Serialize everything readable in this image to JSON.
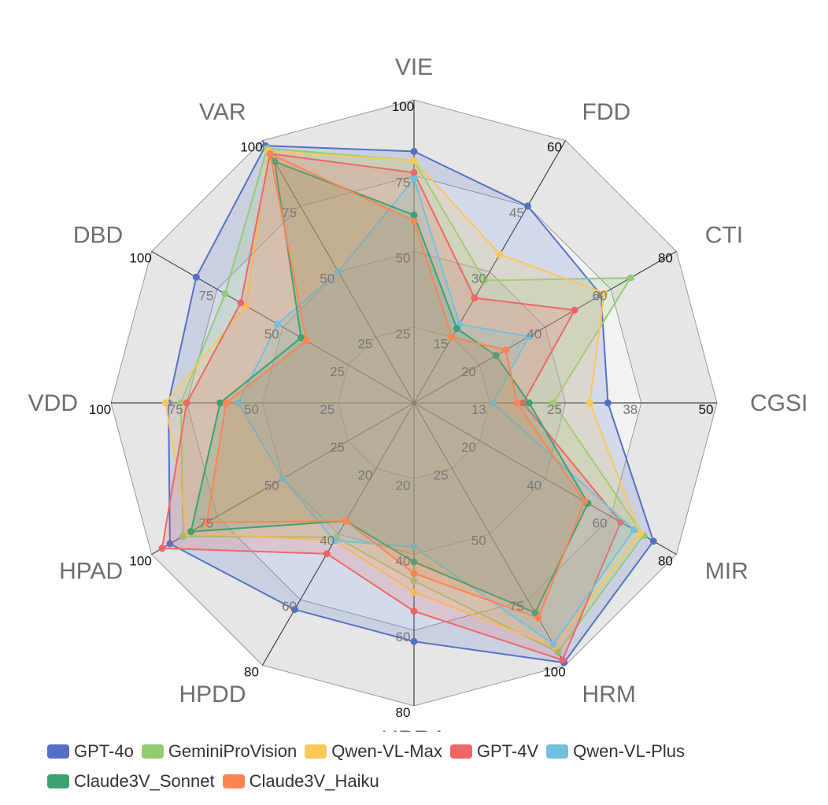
{
  "chart_data": {
    "type": "radar",
    "axes": [
      {
        "name": "VIE",
        "max": 100,
        "ticks": [
          "25",
          "50",
          "75",
          "100"
        ]
      },
      {
        "name": "FDD",
        "max": 60,
        "ticks": [
          "15",
          "30",
          "45",
          "60"
        ]
      },
      {
        "name": "CTI",
        "max": 80,
        "ticks": [
          "20",
          "40",
          "60",
          "80"
        ]
      },
      {
        "name": "CGSI",
        "max": 50,
        "ticks": [
          "13",
          "25",
          "38",
          "50"
        ]
      },
      {
        "name": "MIR",
        "max": 80,
        "ticks": [
          "20",
          "40",
          "60",
          "80"
        ]
      },
      {
        "name": "HRM",
        "max": 100,
        "ticks": [
          "25",
          "50",
          "75",
          "100"
        ]
      },
      {
        "name": "HPRA",
        "max": 80,
        "ticks": [
          "20",
          "40",
          "60",
          "80"
        ]
      },
      {
        "name": "HPDD",
        "max": 80,
        "ticks": [
          "20",
          "40",
          "60",
          "80"
        ]
      },
      {
        "name": "HPAD",
        "max": 100,
        "ticks": [
          "25",
          "50",
          "75",
          "100"
        ]
      },
      {
        "name": "VDD",
        "max": 100,
        "ticks": [
          "25",
          "50",
          "75",
          "100"
        ]
      },
      {
        "name": "DBD",
        "max": 100,
        "ticks": [
          "25",
          "50",
          "75",
          "100"
        ]
      },
      {
        "name": "VAR",
        "max": 100,
        "ticks": [
          "25",
          "50",
          "75",
          "100"
        ]
      }
    ],
    "series": [
      {
        "name": "GPT-4o",
        "color": "#5470c6",
        "values": [
          83,
          45,
          57,
          32,
          73,
          99,
          63,
          63,
          93,
          81,
          83,
          98
        ]
      },
      {
        "name": "GeminiProVision",
        "color": "#91cc75",
        "values": [
          80,
          28,
          66,
          23,
          70,
          95,
          47,
          41,
          88,
          77,
          72,
          97
        ]
      },
      {
        "name": "Qwen-VL-Max",
        "color": "#fac858",
        "values": [
          80,
          34,
          58,
          29,
          69,
          93,
          50,
          42,
          86,
          82,
          64,
          96
        ]
      },
      {
        "name": "GPT-4V",
        "color": "#ee6666",
        "values": [
          76,
          24,
          49,
          18,
          63,
          98,
          55,
          46,
          96,
          75,
          66,
          95
        ]
      },
      {
        "name": "Qwen-VL-Plus",
        "color": "#73c0de",
        "values": [
          74,
          18,
          35,
          13,
          67,
          92,
          38,
          42,
          50,
          58,
          52,
          50
        ]
      },
      {
        "name": "Claude3V_Sonnet",
        "color": "#3ba272",
        "values": [
          62,
          17,
          25,
          19,
          53,
          80,
          42,
          36,
          85,
          64,
          43,
          92
        ]
      },
      {
        "name": "Claude3V_Haiku",
        "color": "#fc8452",
        "values": [
          60,
          15,
          28,
          17,
          52,
          82,
          45,
          36,
          79,
          62,
          41,
          95
        ]
      }
    ],
    "legend_position": "bottom"
  }
}
